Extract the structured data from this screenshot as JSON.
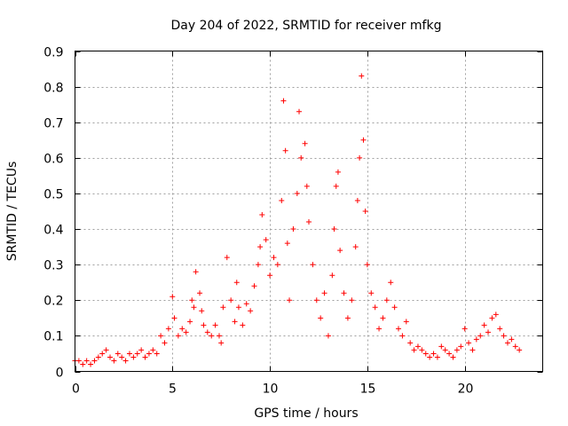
{
  "chart_data": {
    "type": "scatter",
    "title": "Day 204 of 2022, SRMTID for receiver mfkg",
    "xlabel": "GPS time / hours",
    "ylabel": "SRMTID / TECUs",
    "xlim": [
      0,
      24
    ],
    "ylim": [
      0,
      0.9
    ],
    "xticks": [
      0,
      5,
      10,
      15,
      20
    ],
    "xtick_labels": [
      "0",
      "5",
      "10",
      "15",
      "20"
    ],
    "yticks": [
      0,
      0.1,
      0.2,
      0.3,
      0.4,
      0.5,
      0.6,
      0.7,
      0.8,
      0.9
    ],
    "ytick_labels": [
      "0",
      "0.1",
      "0.2",
      "0.3",
      "0.4",
      "0.5",
      "0.6",
      "0.7",
      "0.8",
      "0.9"
    ],
    "grid": true,
    "marker": "plus",
    "color": "#ff0000",
    "series": [
      {
        "name": "SRMTID",
        "x": [
          0.0,
          0.2,
          0.4,
          0.6,
          0.8,
          1.0,
          1.2,
          1.4,
          1.6,
          1.8,
          2.0,
          2.2,
          2.4,
          2.6,
          2.8,
          3.0,
          3.2,
          3.4,
          3.6,
          3.8,
          4.0,
          4.2,
          4.4,
          4.6,
          4.8,
          5.0,
          5.1,
          5.3,
          5.5,
          5.7,
          5.9,
          6.0,
          6.1,
          6.2,
          6.4,
          6.5,
          6.6,
          6.8,
          7.0,
          7.2,
          7.4,
          7.5,
          7.6,
          7.8,
          8.0,
          8.2,
          8.3,
          8.4,
          8.6,
          8.8,
          9.0,
          9.2,
          9.4,
          9.5,
          9.6,
          9.8,
          10.0,
          10.2,
          10.4,
          10.6,
          10.7,
          10.8,
          10.9,
          11.0,
          11.2,
          11.4,
          11.5,
          11.6,
          11.8,
          11.9,
          12.0,
          12.2,
          12.4,
          12.6,
          12.8,
          13.0,
          13.2,
          13.3,
          13.4,
          13.5,
          13.6,
          13.8,
          14.0,
          14.2,
          14.4,
          14.5,
          14.6,
          14.7,
          14.8,
          14.9,
          15.0,
          15.2,
          15.4,
          15.6,
          15.8,
          16.0,
          16.2,
          16.4,
          16.6,
          16.8,
          17.0,
          17.2,
          17.4,
          17.6,
          17.8,
          18.0,
          18.2,
          18.4,
          18.6,
          18.8,
          19.0,
          19.2,
          19.4,
          19.6,
          19.8,
          20.0,
          20.2,
          20.4,
          20.6,
          20.8,
          21.0,
          21.2,
          21.4,
          21.6,
          21.8,
          22.0,
          22.2,
          22.4,
          22.6,
          22.8
        ],
        "y": [
          0.03,
          0.03,
          0.02,
          0.03,
          0.02,
          0.03,
          0.04,
          0.05,
          0.06,
          0.04,
          0.03,
          0.05,
          0.04,
          0.03,
          0.05,
          0.04,
          0.05,
          0.06,
          0.04,
          0.05,
          0.06,
          0.05,
          0.1,
          0.08,
          0.12,
          0.21,
          0.15,
          0.1,
          0.12,
          0.11,
          0.14,
          0.2,
          0.18,
          0.28,
          0.22,
          0.17,
          0.13,
          0.11,
          0.1,
          0.13,
          0.1,
          0.08,
          0.18,
          0.32,
          0.2,
          0.14,
          0.25,
          0.18,
          0.13,
          0.19,
          0.17,
          0.24,
          0.3,
          0.35,
          0.44,
          0.37,
          0.27,
          0.32,
          0.3,
          0.48,
          0.76,
          0.62,
          0.36,
          0.2,
          0.4,
          0.5,
          0.73,
          0.6,
          0.64,
          0.52,
          0.42,
          0.3,
          0.2,
          0.15,
          0.22,
          0.1,
          0.27,
          0.4,
          0.52,
          0.56,
          0.34,
          0.22,
          0.15,
          0.2,
          0.35,
          0.48,
          0.6,
          0.83,
          0.65,
          0.45,
          0.3,
          0.22,
          0.18,
          0.12,
          0.15,
          0.2,
          0.25,
          0.18,
          0.12,
          0.1,
          0.14,
          0.08,
          0.06,
          0.07,
          0.06,
          0.05,
          0.04,
          0.05,
          0.04,
          0.07,
          0.06,
          0.05,
          0.04,
          0.06,
          0.07,
          0.12,
          0.08,
          0.06,
          0.09,
          0.1,
          0.13,
          0.11,
          0.15,
          0.16,
          0.12,
          0.1,
          0.08,
          0.09,
          0.07,
          0.06
        ]
      }
    ]
  }
}
